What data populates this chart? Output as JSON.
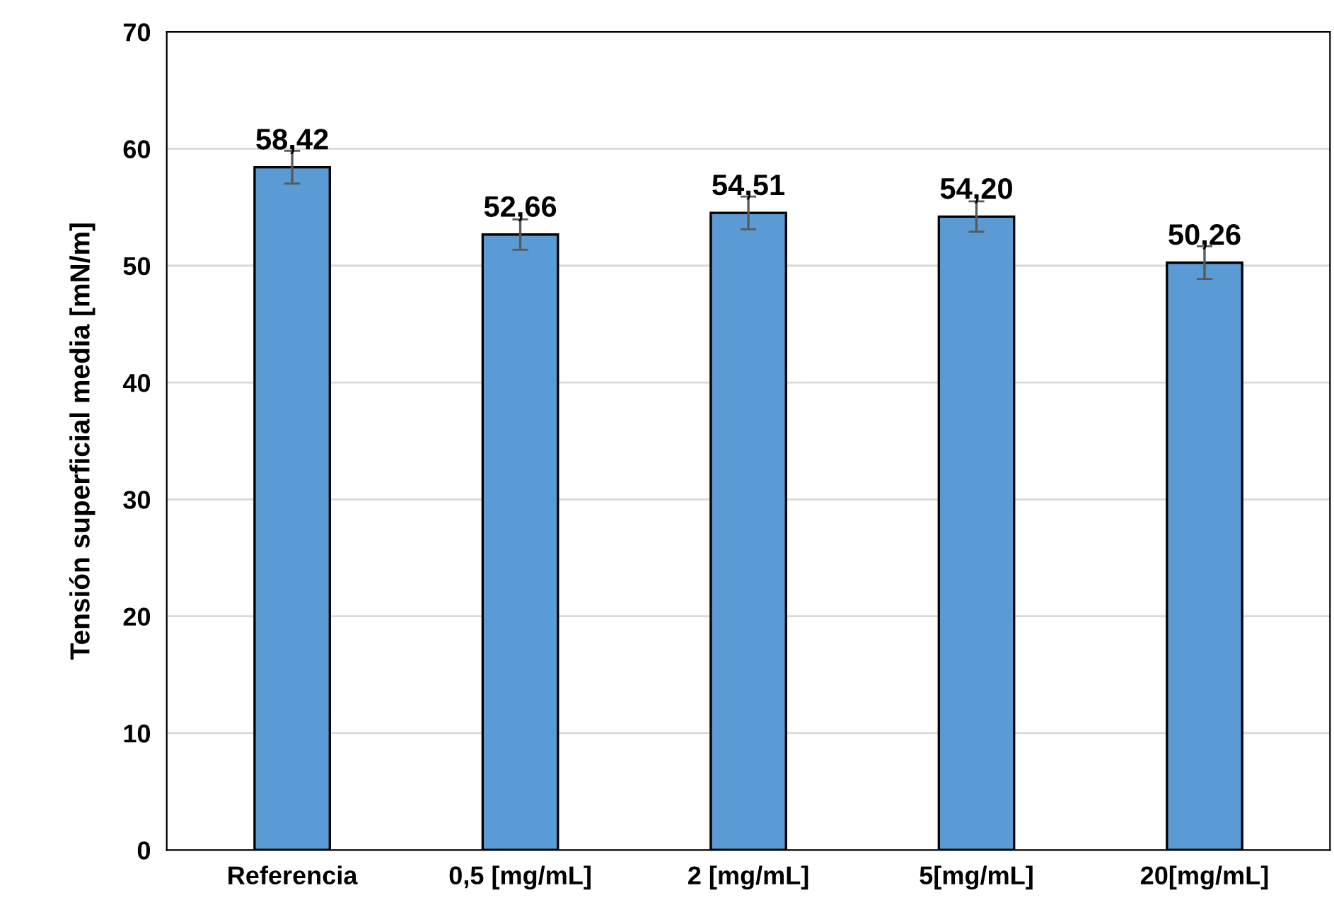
{
  "chart_data": {
    "type": "bar",
    "ylabel": "Tensión superficial media [mN/m]",
    "categories": [
      "Referencia",
      "0,5 [mg/mL]",
      "2 [mg/mL]",
      "5[mg/mL]",
      "20[mg/mL]"
    ],
    "values": [
      58.42,
      52.66,
      54.51,
      54.2,
      50.26
    ],
    "errors": [
      1.4,
      1.3,
      1.4,
      1.3,
      1.4
    ],
    "value_labels": [
      "58,42",
      "52,66",
      "54,51",
      "54,20",
      "50,26"
    ],
    "color": "#5b9bd5",
    "ylim": [
      0,
      70
    ],
    "yticks": [
      0,
      10,
      20,
      30,
      40,
      50,
      60,
      70
    ],
    "grid": "y"
  }
}
